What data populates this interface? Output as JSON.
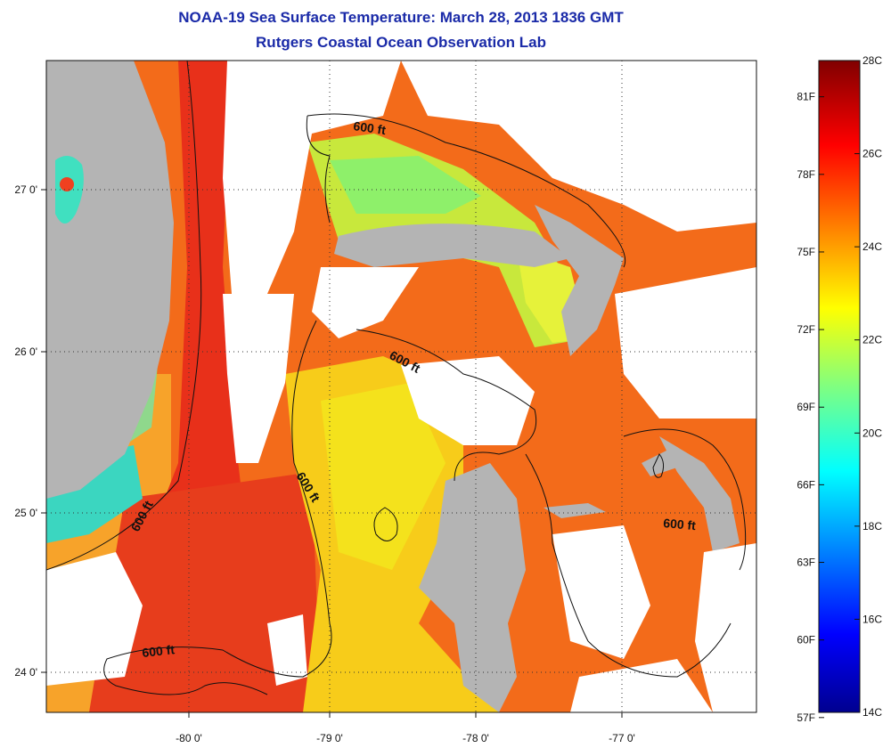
{
  "title": "NOAA-19 Sea Surface Temperature:  March 28, 2013 1836 GMT",
  "subtitle": "Rutgers Coastal Ocean Observation Lab",
  "map": {
    "lon_ticks": [
      "-80 0'",
      "-79 0'",
      "-78 0'",
      "-77 0'"
    ],
    "lat_ticks": [
      "27 0'",
      "26 0'",
      "25 0'",
      "24 0'"
    ],
    "contour_labels": [
      "600 ft",
      "600 ft",
      "600 ft",
      "600 ft",
      "600 ft",
      "600 ft"
    ],
    "colors": {
      "land": "#b4b4b4",
      "cloud": "#ffffff",
      "gulf_stream": "#e8301a"
    }
  },
  "colorbar": {
    "min_c": 14,
    "max_c": 28,
    "celsius_labels": [
      "28C",
      "26C",
      "24C",
      "22C",
      "20C",
      "18C",
      "16C",
      "14C"
    ],
    "fahrenheit_labels": [
      "81F",
      "78F",
      "75F",
      "72F",
      "69F",
      "66F",
      "63F",
      "60F",
      "57F"
    ]
  }
}
